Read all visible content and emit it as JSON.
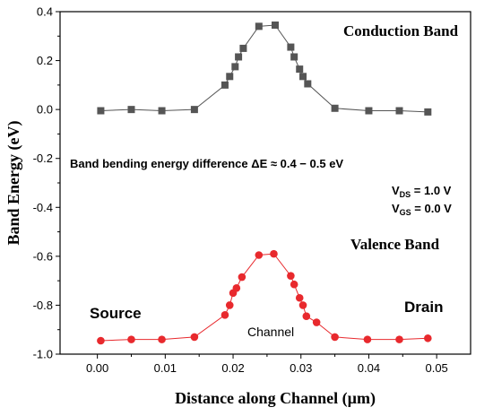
{
  "chart_data": {
    "type": "line",
    "title": "",
    "xlabel": "Distance along Channel (µm)",
    "ylabel": "Band Energy (eV)",
    "xlim": [
      -0.0055,
      0.055
    ],
    "ylim": [
      -1.0,
      0.4
    ],
    "xticks": [
      0.0,
      0.01,
      0.02,
      0.03,
      0.04,
      0.05
    ],
    "xtick_labels": [
      "0.00",
      "0.01",
      "0.02",
      "0.03",
      "0.04",
      "0.05"
    ],
    "yticks": [
      0.4,
      0.2,
      0.0,
      -0.2,
      -0.4,
      -0.6,
      -0.8,
      -1.0
    ],
    "ytick_labels": [
      "0.4",
      "0.2",
      "0.0",
      "-0.2",
      "-0.4",
      "-0.6",
      "-0.8",
      "-1.0"
    ],
    "grid": false,
    "legend": "none",
    "series": [
      {
        "name": "Conduction Band",
        "color": "#555555",
        "marker": "square",
        "x": [
          0.0005,
          0.005,
          0.0095,
          0.0143,
          0.0188,
          0.0195,
          0.0203,
          0.0208,
          0.0215,
          0.0238,
          0.0262,
          0.0285,
          0.029,
          0.0298,
          0.0303,
          0.031,
          0.035,
          0.04,
          0.0445,
          0.0487
        ],
        "y": [
          -0.005,
          0.0,
          -0.005,
          0.0,
          0.1,
          0.135,
          0.175,
          0.215,
          0.25,
          0.34,
          0.345,
          0.255,
          0.215,
          0.165,
          0.135,
          0.105,
          0.005,
          -0.005,
          -0.005,
          -0.01
        ]
      },
      {
        "name": "Valence Band",
        "color": "#e8292d",
        "marker": "circle",
        "x": [
          0.0005,
          0.005,
          0.0095,
          0.0143,
          0.0188,
          0.0195,
          0.02,
          0.0205,
          0.0213,
          0.0238,
          0.026,
          0.0285,
          0.029,
          0.0298,
          0.0303,
          0.0308,
          0.0323,
          0.035,
          0.0398,
          0.0445,
          0.0487
        ],
        "y": [
          -0.945,
          -0.94,
          -0.94,
          -0.93,
          -0.84,
          -0.8,
          -0.75,
          -0.73,
          -0.685,
          -0.595,
          -0.59,
          -0.68,
          -0.715,
          -0.77,
          -0.8,
          -0.845,
          -0.87,
          -0.93,
          -0.94,
          -0.94,
          -0.935
        ]
      }
    ],
    "annotations": {
      "conduction_band": "Conduction Band",
      "valence_band": "Valence Band",
      "band_bending": "Band bending energy difference ΔE ≈  0.4 − 0.5 eV",
      "vds_prefix": "V",
      "vds_sub": "DS",
      "vds_value": " = 1.0 V",
      "vgs_prefix": "V",
      "vgs_sub": "GS",
      "vgs_value": " = 0.0 V",
      "source": "Source",
      "drain": "Drain",
      "channel": "Channel"
    }
  }
}
